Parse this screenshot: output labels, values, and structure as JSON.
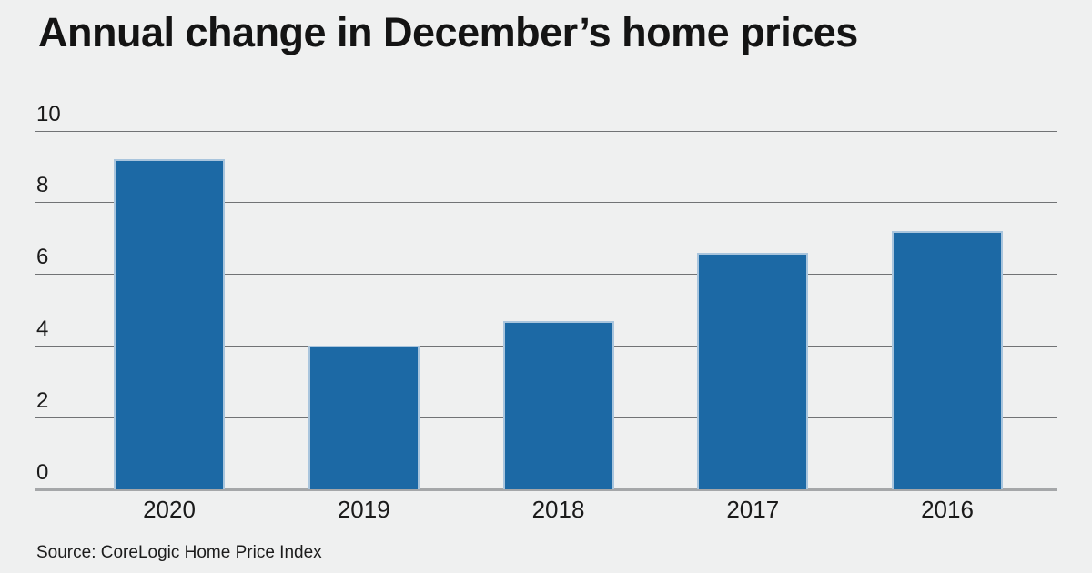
{
  "header": {
    "title": "Annual change in December’s home prices"
  },
  "footer": {
    "source": "Source: CoreLogic Home Price Index"
  },
  "chart_data": {
    "type": "bar",
    "title": "Annual change in December’s home prices",
    "categories": [
      "2020",
      "2019",
      "2018",
      "2017",
      "2016"
    ],
    "values": [
      9.2,
      4.0,
      4.7,
      6.6,
      7.2
    ],
    "xlabel": "",
    "ylabel": "",
    "ylim": [
      0,
      10
    ],
    "yticks": [
      0,
      2,
      4,
      6,
      8,
      10
    ],
    "grid": true,
    "legend": "none",
    "bar_color": "#1c69a5",
    "bar_border_color": "#a9c5dd",
    "background_color": "#eff0f0",
    "source": "Source: CoreLogic Home Price Index"
  }
}
